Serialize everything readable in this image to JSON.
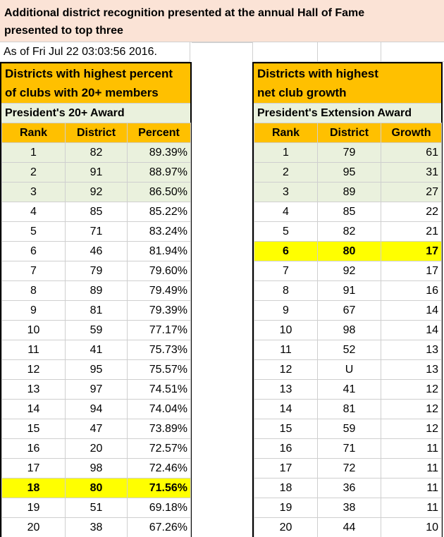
{
  "header": {
    "line1": "Additional district recognition presented at the annual Hall of Fame",
    "line2": "presented to top three",
    "as_of": "As of Fri Jul 22 03:03:56 2016."
  },
  "left": {
    "title_line1": "Districts with highest percent",
    "title_line2": "of clubs with 20+ members",
    "award": "President's 20+ Award",
    "columns": [
      "Rank",
      "District",
      "Percent"
    ],
    "rows": [
      {
        "rank": "1",
        "district": "82",
        "value": "89.39%"
      },
      {
        "rank": "2",
        "district": "91",
        "value": "88.97%"
      },
      {
        "rank": "3",
        "district": "92",
        "value": "86.50%"
      },
      {
        "rank": "4",
        "district": "85",
        "value": "85.22%"
      },
      {
        "rank": "5",
        "district": "71",
        "value": "83.24%"
      },
      {
        "rank": "6",
        "district": "46",
        "value": "81.94%"
      },
      {
        "rank": "7",
        "district": "79",
        "value": "79.60%"
      },
      {
        "rank": "8",
        "district": "89",
        "value": "79.49%"
      },
      {
        "rank": "9",
        "district": "81",
        "value": "79.39%"
      },
      {
        "rank": "10",
        "district": "59",
        "value": "77.17%"
      },
      {
        "rank": "11",
        "district": "41",
        "value": "75.73%"
      },
      {
        "rank": "12",
        "district": "95",
        "value": "75.57%"
      },
      {
        "rank": "13",
        "district": "97",
        "value": "74.51%"
      },
      {
        "rank": "14",
        "district": "94",
        "value": "74.04%"
      },
      {
        "rank": "15",
        "district": "47",
        "value": "73.89%"
      },
      {
        "rank": "16",
        "district": "20",
        "value": "72.57%"
      },
      {
        "rank": "17",
        "district": "98",
        "value": "72.46%"
      },
      {
        "rank": "18",
        "district": "80",
        "value": "71.56%"
      },
      {
        "rank": "19",
        "district": "51",
        "value": "69.18%"
      },
      {
        "rank": "20",
        "district": "38",
        "value": "67.26%"
      }
    ],
    "highlight_rank": "18"
  },
  "right": {
    "title_line1": "Districts with highest",
    "title_line2": "net club growth",
    "award": "President's Extension Award",
    "columns": [
      "Rank",
      "District",
      "Growth"
    ],
    "rows": [
      {
        "rank": "1",
        "district": "79",
        "value": "61"
      },
      {
        "rank": "2",
        "district": "95",
        "value": "31"
      },
      {
        "rank": "3",
        "district": "89",
        "value": "27"
      },
      {
        "rank": "4",
        "district": "85",
        "value": "22"
      },
      {
        "rank": "5",
        "district": "82",
        "value": "21"
      },
      {
        "rank": "6",
        "district": "80",
        "value": "17"
      },
      {
        "rank": "7",
        "district": "92",
        "value": "17"
      },
      {
        "rank": "8",
        "district": "91",
        "value": "16"
      },
      {
        "rank": "9",
        "district": "67",
        "value": "14"
      },
      {
        "rank": "10",
        "district": "98",
        "value": "14"
      },
      {
        "rank": "11",
        "district": "52",
        "value": "13"
      },
      {
        "rank": "12",
        "district": "U",
        "value": "13"
      },
      {
        "rank": "13",
        "district": "41",
        "value": "12"
      },
      {
        "rank": "14",
        "district": "81",
        "value": "12"
      },
      {
        "rank": "15",
        "district": "59",
        "value": "12"
      },
      {
        "rank": "16",
        "district": "71",
        "value": "11"
      },
      {
        "rank": "17",
        "district": "72",
        "value": "11"
      },
      {
        "rank": "18",
        "district": "36",
        "value": "11"
      },
      {
        "rank": "19",
        "district": "38",
        "value": "11"
      },
      {
        "rank": "20",
        "district": "44",
        "value": "10"
      }
    ],
    "highlight_rank": "6"
  },
  "colors": {
    "header_bg": "#fbe3d6",
    "title_bg": "#ffc000",
    "award_bg": "#eaf1dd",
    "top_three_bg": "#eaf1dd",
    "highlight_bg": "#ffff00"
  }
}
